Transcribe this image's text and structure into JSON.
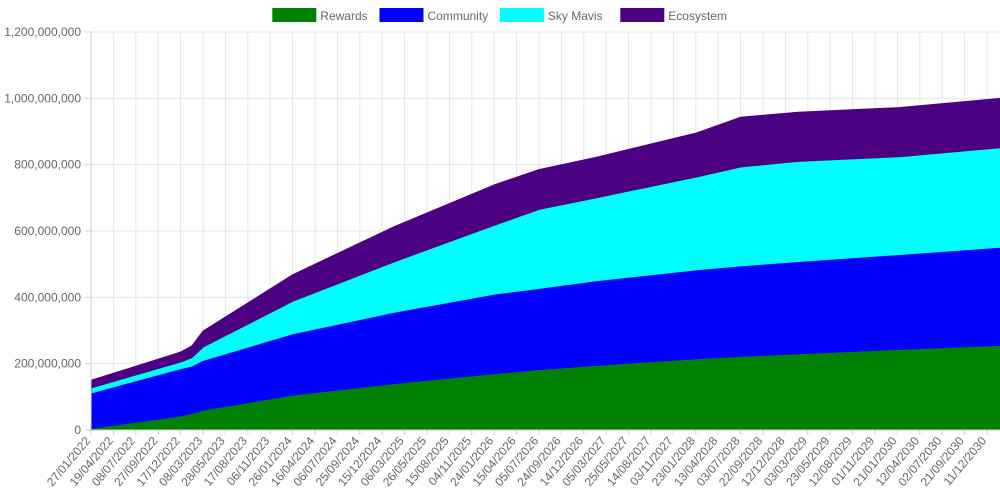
{
  "chart_data": {
    "type": "area",
    "stacked": true,
    "legend_position": "top",
    "grid": true,
    "ylim": [
      0,
      1200000000
    ],
    "y_ticks": [
      "0",
      "200,000,000",
      "400,000,000",
      "600,000,000",
      "800,000,000",
      "1,000,000,000",
      "1,200,000,000"
    ],
    "x_tick_labels": [
      "27/01/2022",
      "19/04/2022",
      "08/07/2022",
      "27/09/2022",
      "17/12/2022",
      "08/03/2023",
      "28/05/2023",
      "17/08/2023",
      "06/11/2023",
      "26/01/2024",
      "16/04/2024",
      "06/07/2024",
      "25/09/2024",
      "15/12/2024",
      "06/03/2025",
      "26/05/2025",
      "15/08/2025",
      "04/11/2025",
      "24/01/2026",
      "15/04/2026",
      "05/07/2026",
      "24/09/2026",
      "14/12/2026",
      "05/03/2027",
      "25/05/2027",
      "14/08/2027",
      "03/11/2027",
      "23/01/2028",
      "13/04/2028",
      "03/07/2028",
      "22/09/2028",
      "12/12/2028",
      "03/03/2029",
      "23/05/2029",
      "12/08/2029",
      "01/11/2029",
      "21/01/2030",
      "12/04/2030",
      "02/07/2030",
      "21/09/2030",
      "11/12/2030"
    ],
    "x": [
      "2022-01-27",
      "2022-01-28",
      "2022-12-17",
      "2023-01-27",
      "2023-03-08",
      "2024-01-26",
      "2025-01-27",
      "2026-01-27",
      "2026-07-05",
      "2027-01-27",
      "2028-01-27",
      "2028-07-03",
      "2029-01-27",
      "2030-01-27",
      "2031-01-27"
    ],
    "series": [
      {
        "name": "Rewards",
        "color": "#008000",
        "values": [
          0,
          5000000,
          42000000,
          50000000,
          60000000,
          105000000,
          140000000,
          170000000,
          182000000,
          195000000,
          215000000,
          222000000,
          230000000,
          243000000,
          255000000
        ]
      },
      {
        "name": "Community",
        "color": "#0000ff",
        "values": [
          0,
          107000000,
          143000000,
          143000000,
          150000000,
          185000000,
          215000000,
          240000000,
          245000000,
          255000000,
          268000000,
          273000000,
          278000000,
          286000000,
          296000000
        ]
      },
      {
        "name": "Sky Mavis",
        "color": "#00ffff",
        "values": [
          0,
          15000000,
          20000000,
          25000000,
          40000000,
          98000000,
          152000000,
          208000000,
          238000000,
          250000000,
          280000000,
          298000000,
          302000000,
          295000000,
          300000000
        ]
      },
      {
        "name": "Ecosystem",
        "color": "#4b0082",
        "values": [
          0,
          23000000,
          30000000,
          36000000,
          48000000,
          80000000,
          106000000,
          122000000,
          120000000,
          122000000,
          133000000,
          150000000,
          148000000,
          148000000,
          149000000
        ]
      }
    ]
  }
}
